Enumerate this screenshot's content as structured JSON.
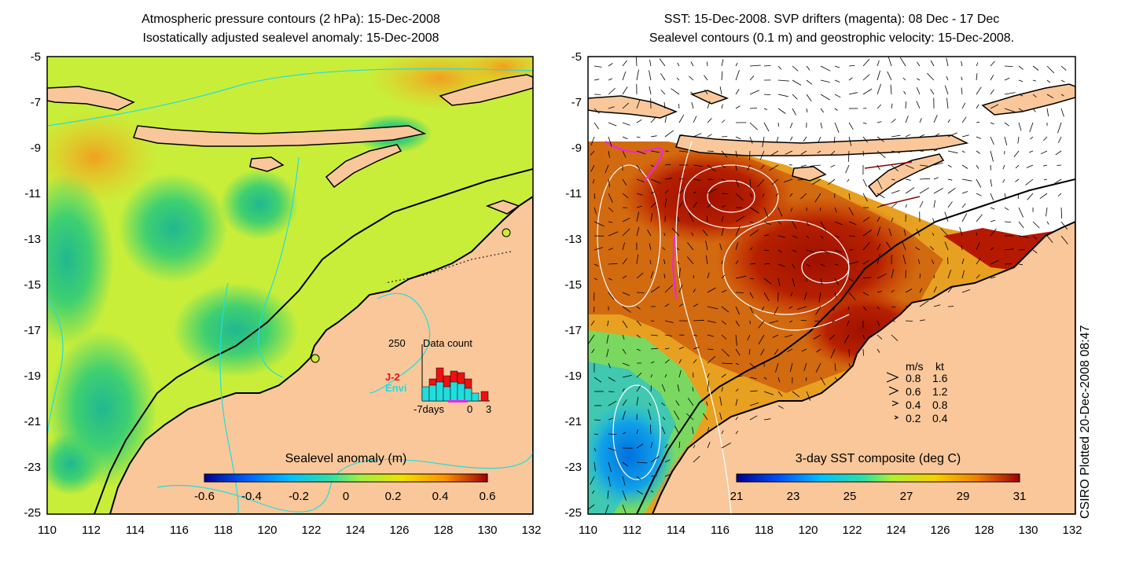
{
  "left_panel": {
    "title_line1": "Atmospheric pressure contours (2 hPa): 15-Dec-2008",
    "title_line2": "Isostatically adjusted sealevel anomaly: 15-Dec-2008",
    "colorbar": {
      "title": "Sealevel anomaly (m)",
      "ticks": [
        "-0.6",
        "-0.4",
        "-0.2",
        "0",
        "0.2",
        "0.4",
        "0.6"
      ]
    },
    "inset": {
      "title": "Data count",
      "max_label": "250",
      "xticks": [
        "-7days",
        "0",
        "3"
      ],
      "legend": [
        {
          "name": "J-2",
          "color": "#ee1111"
        },
        {
          "name": "Envi",
          "color": "#22dddd"
        }
      ]
    }
  },
  "right_panel": {
    "title_line1": "SST: 15-Dec-2008. SVP drifters (magenta): 08 Dec - 17 Dec",
    "title_line2": "Sealevel contours (0.1 m) and geostrophic velocity: 15-Dec-2008.",
    "colorbar": {
      "title": "3-day SST composite (deg C)",
      "ticks": [
        "21",
        "23",
        "25",
        "27",
        "29",
        "31"
      ]
    },
    "velocity_legend": {
      "header_ms": "m/s",
      "header_kt": "kt",
      "rows": [
        {
          "ms": "0.8",
          "kt": "1.6"
        },
        {
          "ms": "0.6",
          "kt": "1.2"
        },
        {
          "ms": "0.4",
          "kt": "0.8"
        },
        {
          "ms": "0.2",
          "kt": "0.4"
        }
      ]
    }
  },
  "axes": {
    "y_ticks": [
      "-5",
      "-7",
      "-9",
      "-11",
      "-13",
      "-15",
      "-17",
      "-19",
      "-21",
      "-23",
      "-25"
    ],
    "x_ticks": [
      "110",
      "112",
      "114",
      "116",
      "118",
      "120",
      "122",
      "124",
      "126",
      "128",
      "130",
      "132"
    ]
  },
  "credit": "CSIRO Plotted 20-Dec-2008 08:47",
  "colors": {
    "land": "#f9c79a",
    "sla_background": "#c8ee3a",
    "sla_low": "#2fcf7a",
    "sst_warm": "#b51a00",
    "sst_mid": "#e8a020",
    "sst_cool": "#2ab0e8",
    "drifter": "#ee22ee"
  }
}
